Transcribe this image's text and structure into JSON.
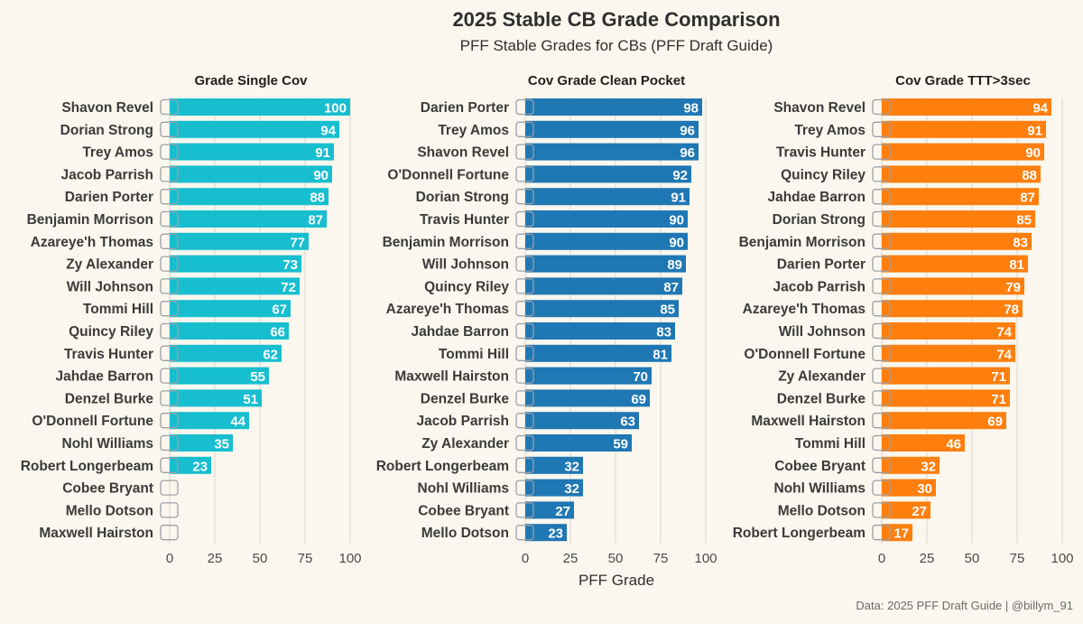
{
  "title": "2025 Stable CB Grade Comparison",
  "subtitle": "PFF Stable Grades for CBs (PFF Draft Guide)",
  "xlabel": "PFF Grade",
  "caption": "Data: 2025 PFF Draft Guide | @billym_91",
  "colors": {
    "background": "#fbf7ee",
    "text": "#2f2f2f",
    "grid": "#d9d6cf",
    "logo_placeholder": "#9aa0a6"
  },
  "chart_data": [
    {
      "type": "bar",
      "orientation": "horizontal",
      "title": "Grade Single Cov",
      "color": "#17becf",
      "xlim": [
        0,
        100
      ],
      "xticks": [
        0,
        25,
        50,
        75,
        100
      ],
      "categories": [
        "Shavon Revel",
        "Dorian Strong",
        "Trey Amos",
        "Jacob Parrish",
        "Darien Porter",
        "Benjamin Morrison",
        "Azareye'h Thomas",
        "Zy Alexander",
        "Will Johnson",
        "Tommi Hill",
        "Quincy Riley",
        "Travis Hunter",
        "Jahdae Barron",
        "Denzel Burke",
        "O'Donnell Fortune",
        "Nohl Williams",
        "Robert Longerbeam",
        "Cobee Bryant",
        "Mello Dotson",
        "Maxwell Hairston"
      ],
      "values": [
        100,
        94,
        91,
        90,
        88,
        87,
        77,
        73,
        72,
        67,
        66,
        62,
        55,
        51,
        44,
        35,
        23,
        null,
        null,
        null
      ]
    },
    {
      "type": "bar",
      "orientation": "horizontal",
      "title": "Cov Grade Clean Pocket",
      "color": "#1f77b4",
      "xlim": [
        0,
        100
      ],
      "xticks": [
        0,
        25,
        50,
        75,
        100
      ],
      "categories": [
        "Darien Porter",
        "Trey Amos",
        "Shavon Revel",
        "O'Donnell Fortune",
        "Dorian Strong",
        "Travis Hunter",
        "Benjamin Morrison",
        "Will Johnson",
        "Quincy Riley",
        "Azareye'h Thomas",
        "Jahdae Barron",
        "Tommi Hill",
        "Maxwell Hairston",
        "Denzel Burke",
        "Jacob Parrish",
        "Zy Alexander",
        "Robert Longerbeam",
        "Nohl Williams",
        "Cobee Bryant",
        "Mello Dotson"
      ],
      "values": [
        98,
        96,
        96,
        92,
        91,
        90,
        90,
        89,
        87,
        85,
        83,
        81,
        70,
        69,
        63,
        59,
        32,
        32,
        27,
        23
      ]
    },
    {
      "type": "bar",
      "orientation": "horizontal",
      "title": "Cov Grade TTT>3sec",
      "color": "#ff7f0e",
      "xlim": [
        0,
        100
      ],
      "xticks": [
        0,
        25,
        50,
        75,
        100
      ],
      "categories": [
        "Shavon Revel",
        "Trey Amos",
        "Travis Hunter",
        "Quincy Riley",
        "Jahdae Barron",
        "Dorian Strong",
        "Benjamin Morrison",
        "Darien Porter",
        "Jacob Parrish",
        "Azareye'h Thomas",
        "Will Johnson",
        "O'Donnell Fortune",
        "Zy Alexander",
        "Denzel Burke",
        "Maxwell Hairston",
        "Tommi Hill",
        "Cobee Bryant",
        "Nohl Williams",
        "Mello Dotson",
        "Robert Longerbeam"
      ],
      "values": [
        94,
        91,
        90,
        88,
        87,
        85,
        83,
        81,
        79,
        78,
        74,
        74,
        71,
        71,
        69,
        46,
        32,
        30,
        27,
        17
      ]
    }
  ]
}
